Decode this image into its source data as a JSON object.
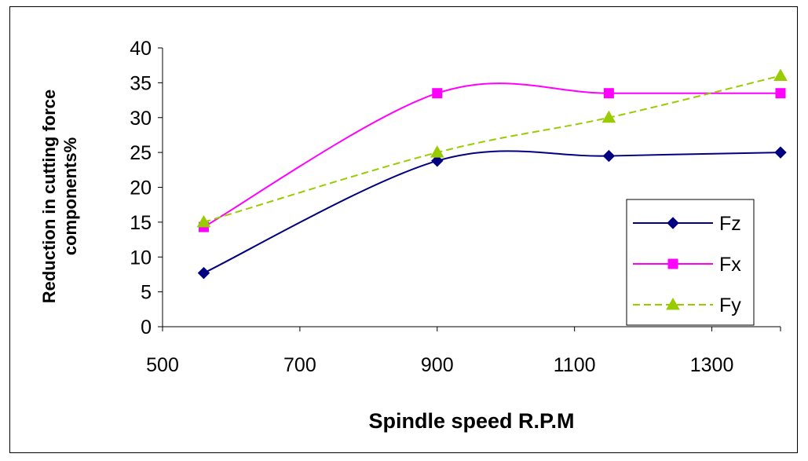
{
  "chart_data": {
    "type": "line",
    "title": "",
    "xlabel": "Spindle speed R.P.M",
    "ylabel_lines": [
      "Reduction in cutting force",
      "components%"
    ],
    "xlim": [
      500,
      1400
    ],
    "ylim": [
      0,
      40
    ],
    "xticks": [
      500,
      700,
      900,
      1100,
      1300
    ],
    "yticks": [
      0,
      5,
      10,
      15,
      20,
      25,
      30,
      35,
      40
    ],
    "grid": false,
    "legend_position": "lower-right",
    "series": [
      {
        "name": "Fz",
        "color": "#000080",
        "marker": "diamond",
        "dash": "solid",
        "x": [
          560,
          900,
          1150,
          1400
        ],
        "y": [
          7.7,
          23.8,
          24.5,
          25
        ]
      },
      {
        "name": "Fx",
        "color": "#ff00ff",
        "marker": "square",
        "dash": "solid",
        "x": [
          560,
          900,
          1150,
          1400
        ],
        "y": [
          14.3,
          33.5,
          33.5,
          33.5
        ]
      },
      {
        "name": "Fy",
        "color": "#99cc00",
        "marker": "triangle",
        "dash": "dashed",
        "x": [
          560,
          900,
          1150,
          1400
        ],
        "y": [
          15,
          25,
          30,
          36
        ]
      }
    ]
  }
}
